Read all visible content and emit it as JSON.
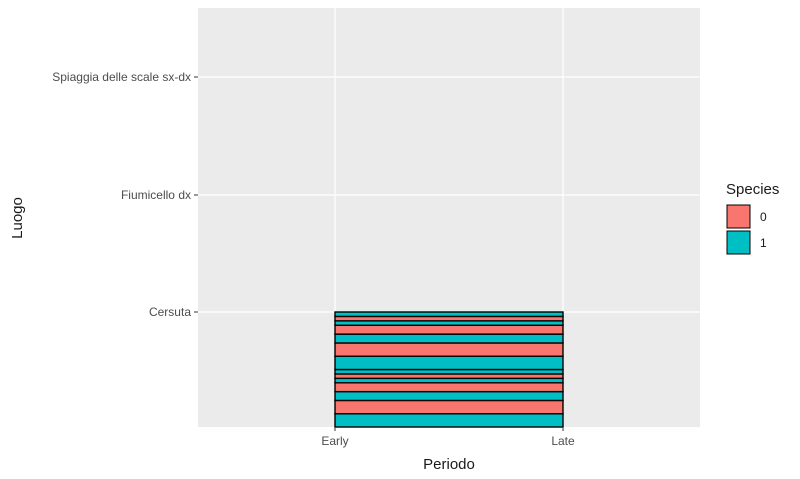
{
  "chart_data": {
    "type": "bar",
    "orientation": "stacked-rectangles",
    "xlabel": "Periodo",
    "ylabel": "Luogo",
    "x_categories": [
      "Early",
      "Late"
    ],
    "y_categories": [
      "Cersuta",
      "Fiumicello dx",
      "Spiaggia delle scale sx-dx"
    ],
    "grid": true,
    "legend": {
      "title": "Species",
      "position": "right",
      "entries": [
        {
          "label": "0",
          "color": "#F8766D"
        },
        {
          "label": "1",
          "color": "#00BFC4"
        }
      ]
    },
    "stacked_segments": [
      {
        "species": "1",
        "size": 3
      },
      {
        "species": "0",
        "size": 3
      },
      {
        "species": "1",
        "size": 2
      },
      {
        "species": "0",
        "size": 2
      },
      {
        "species": "1",
        "size": 1
      },
      {
        "species": "0",
        "size": 1
      },
      {
        "species": "1",
        "size": 1
      },
      {
        "species": "1",
        "size": 3
      },
      {
        "species": "0",
        "size": 3
      },
      {
        "species": "1",
        "size": 2
      },
      {
        "species": "0",
        "size": 2
      },
      {
        "species": "1",
        "size": 1
      },
      {
        "species": "0",
        "size": 1
      },
      {
        "species": "1",
        "size": 1
      }
    ]
  },
  "colors": {
    "panel_bg": "#EBEBEB",
    "grid": "#FFFFFF",
    "species_0": "#F8766D",
    "species_1": "#00BFC4"
  }
}
